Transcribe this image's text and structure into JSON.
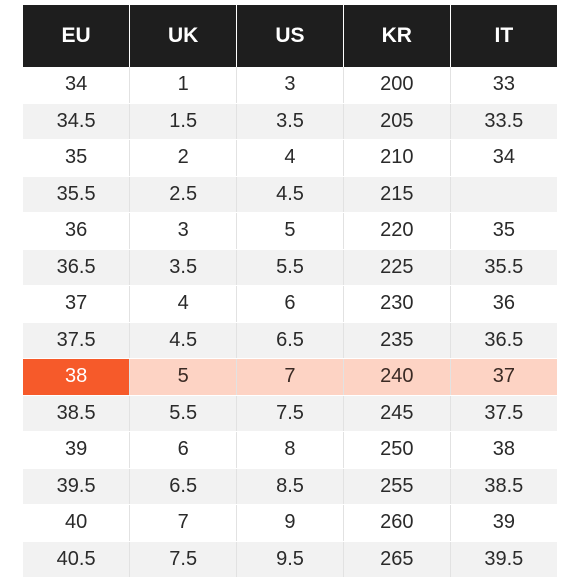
{
  "table": {
    "headers": [
      "EU",
      "UK",
      "US",
      "KR",
      "IT"
    ],
    "selected_row_index": 8,
    "colors": {
      "header_bg": "#1e1e1e",
      "header_text": "#ffffff",
      "row_alt_bg": "#f2f2f2",
      "selected_row_bg": "#fdd3c4",
      "selected_cell_bg": "#f65a2a"
    },
    "rows": [
      [
        "34",
        "1",
        "3",
        "200",
        "33"
      ],
      [
        "34.5",
        "1.5",
        "3.5",
        "205",
        "33.5"
      ],
      [
        "35",
        "2",
        "4",
        "210",
        "34"
      ],
      [
        "35.5",
        "2.5",
        "4.5",
        "215",
        ""
      ],
      [
        "36",
        "3",
        "5",
        "220",
        "35"
      ],
      [
        "36.5",
        "3.5",
        "5.5",
        "225",
        "35.5"
      ],
      [
        "37",
        "4",
        "6",
        "230",
        "36"
      ],
      [
        "37.5",
        "4.5",
        "6.5",
        "235",
        "36.5"
      ],
      [
        "38",
        "5",
        "7",
        "240",
        "37"
      ],
      [
        "38.5",
        "5.5",
        "7.5",
        "245",
        "37.5"
      ],
      [
        "39",
        "6",
        "8",
        "250",
        "38"
      ],
      [
        "39.5",
        "6.5",
        "8.5",
        "255",
        "38.5"
      ],
      [
        "40",
        "7",
        "9",
        "260",
        "39"
      ],
      [
        "40.5",
        "7.5",
        "9.5",
        "265",
        "39.5"
      ]
    ]
  }
}
